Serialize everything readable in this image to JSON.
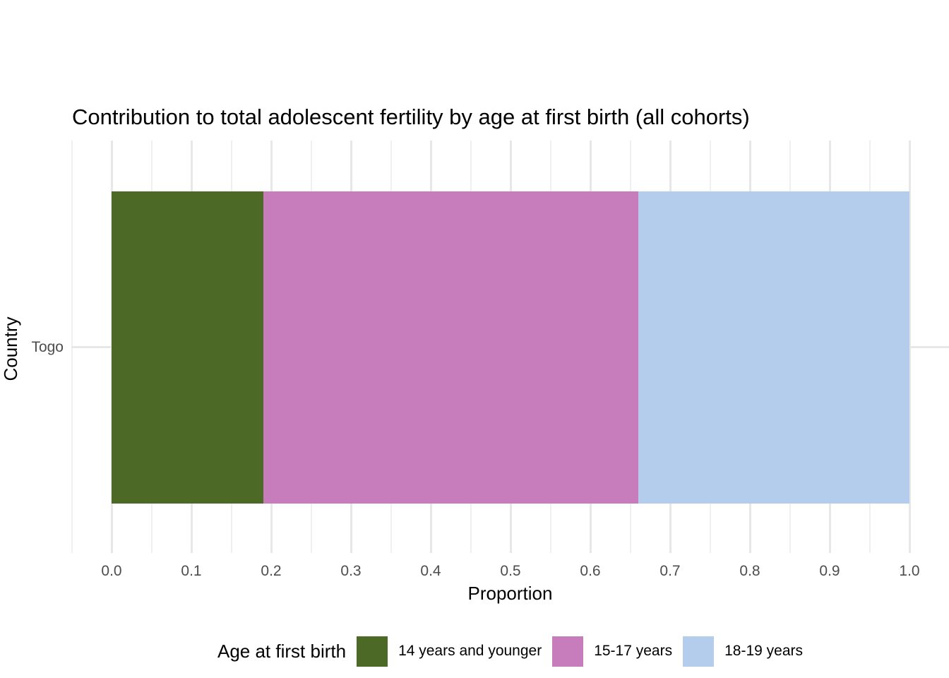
{
  "chart_data": {
    "type": "bar",
    "orientation": "horizontal_stacked",
    "title": "Contribution to total adolescent fertility by age at first birth (all cohorts)",
    "xlabel": "Proportion",
    "ylabel": "Country",
    "categories": [
      "Togo"
    ],
    "series": [
      {
        "name": "14 years and younger",
        "color": "#4C6A26",
        "values": [
          0.19
        ]
      },
      {
        "name": "15-17 years",
        "color": "#C77CBC",
        "values": [
          0.47
        ]
      },
      {
        "name": "18-19 years",
        "color": "#B5CDEC",
        "values": [
          0.34
        ]
      }
    ],
    "xlim": [
      0,
      1
    ],
    "x_tick_labels": [
      "0.0",
      "0.1",
      "0.2",
      "0.3",
      "0.4",
      "0.5",
      "0.6",
      "0.7",
      "0.8",
      "0.9",
      "1.0"
    ],
    "minor_grid_step": 0.05,
    "grid": true,
    "legend_title": "Age at first birth",
    "legend_position": "bottom",
    "background": "#FFFFFF",
    "major_grid_color": "#E7E7E7",
    "minor_grid_color": "#F0F0F0",
    "axis_text_color": "#4D4D4D",
    "title_text_color": "#000000"
  }
}
